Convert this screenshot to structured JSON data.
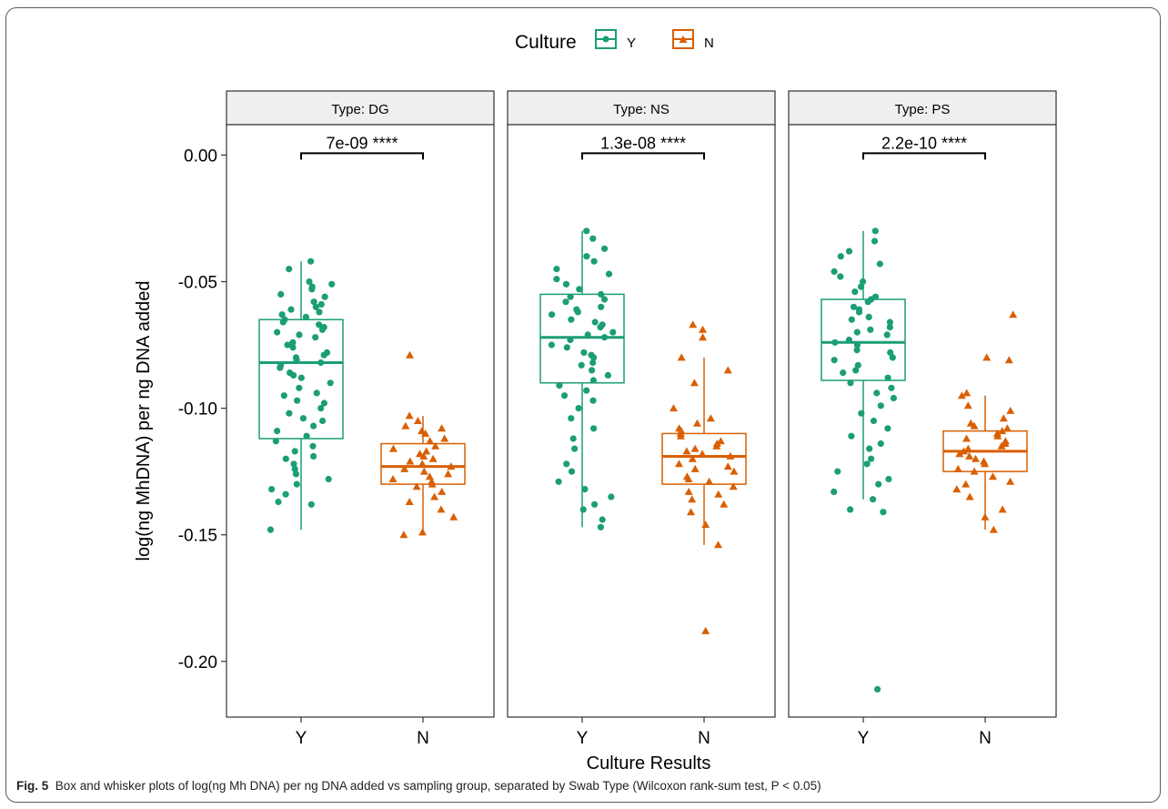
{
  "legend": {
    "title": "Culture",
    "entries": [
      {
        "label": "Y",
        "color": "#1b9e77",
        "shape": "circle"
      },
      {
        "label": "N",
        "color": "#d95f02",
        "shape": "triangle"
      }
    ]
  },
  "caption": {
    "label": "Fig. 5",
    "text": "Box and whisker plots of log(ng Mh DNA) per ng DNA added vs sampling group, separated by Swab Type (Wilcoxon rank-sum test, P < 0.05)"
  },
  "chart_data": {
    "type": "box",
    "ylabel": "log(ng MhDNA) per ng DNA added",
    "xlabel": "Culture Results",
    "ylim": [
      -0.222,
      0.012
    ],
    "yticks": [
      0.0,
      -0.05,
      -0.1,
      -0.15,
      -0.2
    ],
    "ytick_labels": [
      "0.00",
      "-0.05",
      "-0.10",
      "-0.15",
      "-0.20"
    ],
    "categories": [
      "Y",
      "N"
    ],
    "grid": false,
    "legend_position": "top",
    "panels": [
      {
        "strip": "Type: DG",
        "pvalue": "7e-09 ****",
        "groups": [
          {
            "category": "Y",
            "q1": -0.112,
            "median": -0.082,
            "q3": -0.065,
            "whisker_low": -0.148,
            "whisker_high": -0.042,
            "points": [
              -0.042,
              -0.045,
              -0.05,
              -0.051,
              -0.052,
              -0.053,
              -0.055,
              -0.056,
              -0.058,
              -0.059,
              -0.06,
              -0.061,
              -0.062,
              -0.063,
              -0.064,
              -0.065,
              -0.066,
              -0.067,
              -0.068,
              -0.069,
              -0.07,
              -0.071,
              -0.072,
              -0.074,
              -0.075,
              -0.076,
              -0.078,
              -0.079,
              -0.08,
              -0.081,
              -0.082,
              -0.083,
              -0.084,
              -0.086,
              -0.087,
              -0.088,
              -0.09,
              -0.092,
              -0.094,
              -0.095,
              -0.097,
              -0.098,
              -0.1,
              -0.102,
              -0.104,
              -0.105,
              -0.107,
              -0.109,
              -0.111,
              -0.113,
              -0.115,
              -0.117,
              -0.119,
              -0.12,
              -0.122,
              -0.124,
              -0.126,
              -0.128,
              -0.13,
              -0.132,
              -0.134,
              -0.137,
              -0.138,
              -0.148
            ]
          },
          {
            "category": "N",
            "q1": -0.13,
            "median": -0.123,
            "q3": -0.114,
            "whisker_low": -0.15,
            "whisker_high": -0.103,
            "points": [
              -0.079,
              -0.103,
              -0.105,
              -0.107,
              -0.108,
              -0.109,
              -0.11,
              -0.112,
              -0.113,
              -0.115,
              -0.116,
              -0.117,
              -0.118,
              -0.119,
              -0.12,
              -0.121,
              -0.122,
              -0.123,
              -0.124,
              -0.125,
              -0.126,
              -0.127,
              -0.128,
              -0.129,
              -0.13,
              -0.131,
              -0.133,
              -0.135,
              -0.137,
              -0.14,
              -0.143,
              -0.149,
              -0.15
            ]
          }
        ]
      },
      {
        "strip": "Type: NS",
        "pvalue": "1.3e-08 ****",
        "groups": [
          {
            "category": "Y",
            "q1": -0.09,
            "median": -0.072,
            "q3": -0.055,
            "whisker_low": -0.147,
            "whisker_high": -0.03,
            "points": [
              -0.03,
              -0.033,
              -0.037,
              -0.04,
              -0.042,
              -0.045,
              -0.047,
              -0.049,
              -0.051,
              -0.053,
              -0.055,
              -0.056,
              -0.057,
              -0.058,
              -0.06,
              -0.061,
              -0.062,
              -0.063,
              -0.065,
              -0.066,
              -0.067,
              -0.068,
              -0.07,
              -0.071,
              -0.072,
              -0.073,
              -0.075,
              -0.076,
              -0.078,
              -0.079,
              -0.08,
              -0.082,
              -0.083,
              -0.085,
              -0.087,
              -0.089,
              -0.091,
              -0.093,
              -0.095,
              -0.097,
              -0.1,
              -0.104,
              -0.108,
              -0.112,
              -0.116,
              -0.122,
              -0.125,
              -0.129,
              -0.132,
              -0.135,
              -0.138,
              -0.14,
              -0.144,
              -0.147
            ]
          },
          {
            "category": "N",
            "q1": -0.13,
            "median": -0.119,
            "q3": -0.11,
            "whisker_low": -0.154,
            "whisker_high": -0.08,
            "points": [
              -0.067,
              -0.069,
              -0.072,
              -0.08,
              -0.085,
              -0.09,
              -0.1,
              -0.104,
              -0.106,
              -0.108,
              -0.109,
              -0.11,
              -0.111,
              -0.113,
              -0.114,
              -0.115,
              -0.116,
              -0.117,
              -0.118,
              -0.119,
              -0.12,
              -0.122,
              -0.123,
              -0.124,
              -0.125,
              -0.127,
              -0.128,
              -0.129,
              -0.131,
              -0.133,
              -0.134,
              -0.136,
              -0.138,
              -0.141,
              -0.146,
              -0.154,
              -0.188
            ]
          }
        ]
      },
      {
        "strip": "Type: PS",
        "pvalue": "2.2e-10 ****",
        "groups": [
          {
            "category": "Y",
            "q1": -0.089,
            "median": -0.074,
            "q3": -0.057,
            "whisker_low": -0.136,
            "whisker_high": -0.03,
            "points": [
              -0.03,
              -0.034,
              -0.038,
              -0.04,
              -0.043,
              -0.046,
              -0.048,
              -0.05,
              -0.052,
              -0.054,
              -0.056,
              -0.057,
              -0.058,
              -0.06,
              -0.061,
              -0.062,
              -0.064,
              -0.065,
              -0.066,
              -0.068,
              -0.069,
              -0.07,
              -0.071,
              -0.073,
              -0.074,
              -0.075,
              -0.077,
              -0.078,
              -0.08,
              -0.081,
              -0.083,
              -0.085,
              -0.086,
              -0.088,
              -0.09,
              -0.092,
              -0.094,
              -0.096,
              -0.099,
              -0.102,
              -0.105,
              -0.108,
              -0.111,
              -0.114,
              -0.116,
              -0.12,
              -0.122,
              -0.125,
              -0.128,
              -0.13,
              -0.133,
              -0.136,
              -0.14,
              -0.141,
              -0.211
            ]
          },
          {
            "category": "N",
            "q1": -0.125,
            "median": -0.117,
            "q3": -0.109,
            "whisker_low": -0.148,
            "whisker_high": -0.095,
            "points": [
              -0.063,
              -0.08,
              -0.081,
              -0.094,
              -0.095,
              -0.099,
              -0.101,
              -0.104,
              -0.106,
              -0.107,
              -0.108,
              -0.109,
              -0.11,
              -0.111,
              -0.112,
              -0.113,
              -0.114,
              -0.115,
              -0.116,
              -0.117,
              -0.118,
              -0.119,
              -0.12,
              -0.121,
              -0.122,
              -0.124,
              -0.125,
              -0.127,
              -0.129,
              -0.13,
              -0.132,
              -0.135,
              -0.14,
              -0.143,
              -0.148
            ]
          }
        ]
      }
    ]
  }
}
